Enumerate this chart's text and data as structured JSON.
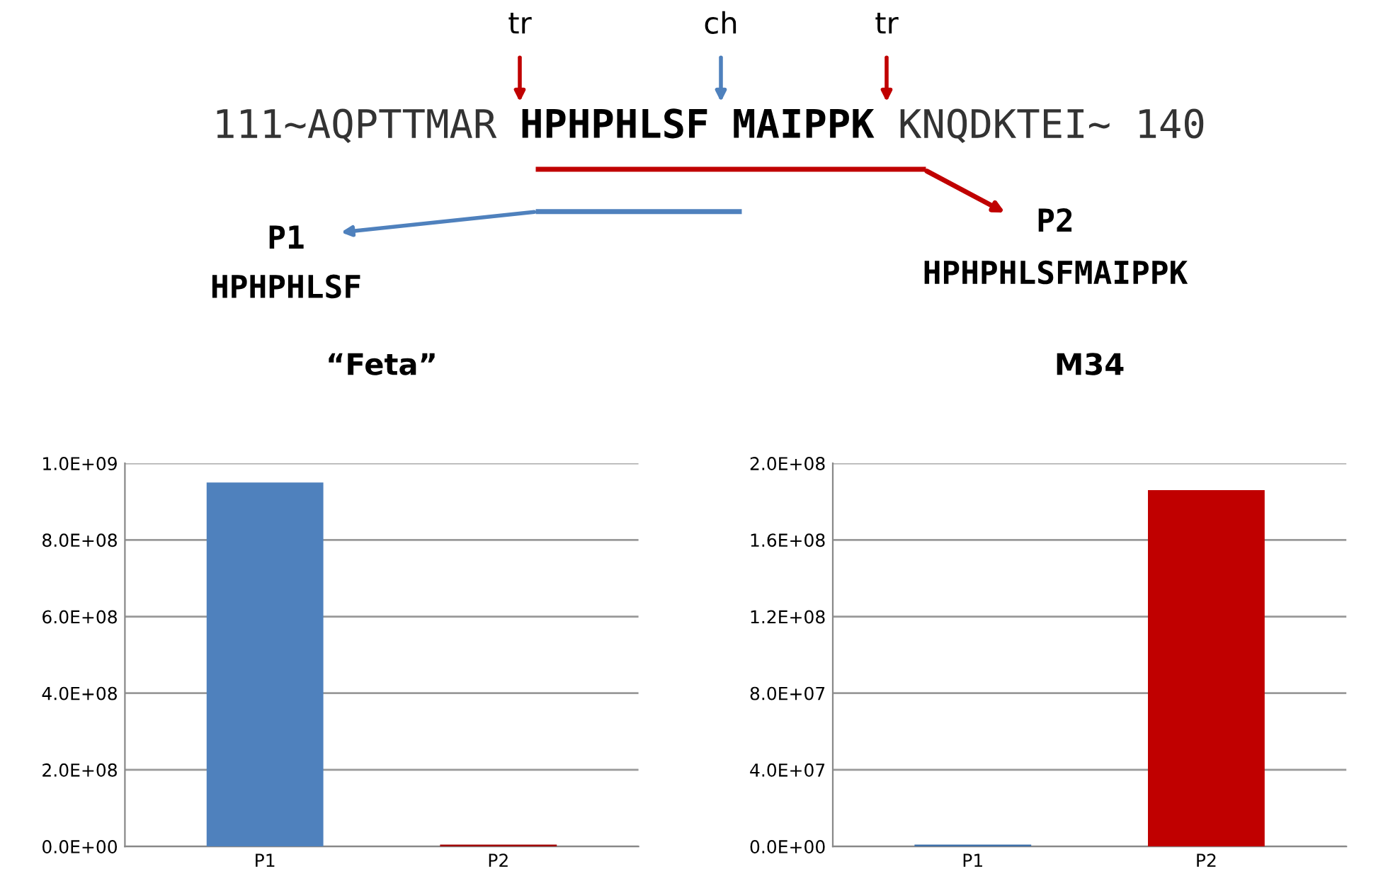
{
  "chart_data": [
    {
      "type": "other",
      "annotations": [
        "tr",
        "ch",
        "tr",
        "111~AQPTTMAR",
        "HPHPHLSF",
        "MAIPPK",
        "KNQDKTEI~ 140",
        "P1",
        "HPHPHLSF",
        "P2",
        "HPHPHLSFMAIPPK"
      ]
    },
    {
      "type": "bar",
      "title": "“Feta”",
      "categories": [
        "P1",
        "P2"
      ],
      "values": [
        950000000,
        5000000
      ],
      "colors": [
        "#4f81bd",
        "#a00000"
      ],
      "ylim": [
        0,
        1000000000
      ],
      "yticks": [
        {
          "value": 0,
          "label": "0.0E+00"
        },
        {
          "value": 200000000,
          "label": "2.0E+08"
        },
        {
          "value": 400000000,
          "label": "4.0E+08"
        },
        {
          "value": 600000000,
          "label": "6.0E+08"
        },
        {
          "value": 800000000,
          "label": "8.0E+08"
        },
        {
          "value": 1000000000,
          "label": "1.0E+09"
        }
      ],
      "grid": "y"
    },
    {
      "type": "bar",
      "title": "M34",
      "categories": [
        "P1",
        "P2"
      ],
      "values": [
        1000000,
        186000000
      ],
      "colors": [
        "#3d6ea8",
        "#c00000"
      ],
      "ylim": [
        0,
        200000000
      ],
      "yticks": [
        {
          "value": 0,
          "label": "0.0E+00"
        },
        {
          "value": 40000000,
          "label": "4.0E+07"
        },
        {
          "value": 80000000,
          "label": "8.0E+07"
        },
        {
          "value": 120000000,
          "label": "1.2E+08"
        },
        {
          "value": 160000000,
          "label": "1.6E+08"
        },
        {
          "value": 200000000,
          "label": "2.0E+08"
        }
      ],
      "grid": "y"
    }
  ]
}
